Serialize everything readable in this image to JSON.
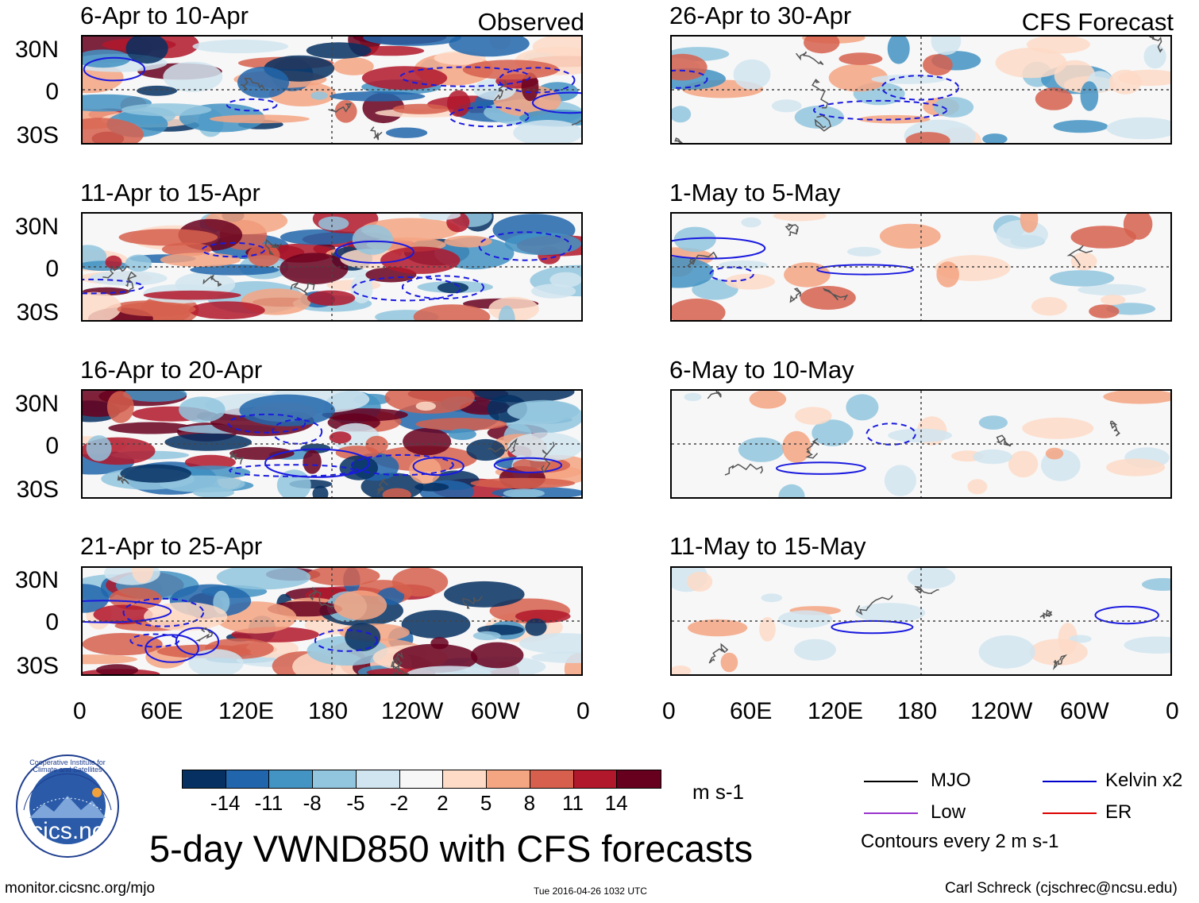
{
  "observed_label": "Observed",
  "forecast_label": "CFS Forecast",
  "panels": [
    {
      "title": "6-Apr to 10-Apr"
    },
    {
      "title": "11-Apr to 15-Apr"
    },
    {
      "title": "16-Apr to 20-Apr"
    },
    {
      "title": "21-Apr to 25-Apr"
    },
    {
      "title": "26-Apr to 30-Apr"
    },
    {
      "title": "1-May to 5-May"
    },
    {
      "title": "6-May to 10-May"
    },
    {
      "title": "11-May to 15-May"
    }
  ],
  "lat_ticks": [
    "30N",
    "0",
    "30S"
  ],
  "lon_ticks": [
    "0",
    "60E",
    "120E",
    "180",
    "120W",
    "60W",
    "0"
  ],
  "colorbar": {
    "colors": [
      "#053061",
      "#2166ac",
      "#4393c3",
      "#92c5de",
      "#d1e5f0",
      "#f7f7f7",
      "#fddbc7",
      "#f4a582",
      "#d6604d",
      "#b2182b",
      "#67001f"
    ],
    "labels": [
      "-14",
      "-11",
      "-8",
      "-5",
      "-2",
      "2",
      "5",
      "8",
      "11",
      "14"
    ],
    "units": "m s-1"
  },
  "legend": {
    "items": [
      {
        "label": "MJO",
        "color": "#000000"
      },
      {
        "label": "Kelvin x2",
        "color": "#0000cc"
      },
      {
        "label": "Low",
        "color": "#9933cc"
      },
      {
        "label": "ER",
        "color": "#dd0000"
      }
    ],
    "note": "Contours every 2 m s-1"
  },
  "logo_text": "Cooperative Institute for Climate and Satellites",
  "logo_name": "cics.nc",
  "main_title": "5-day VWND850 with CFS forecasts",
  "footer": {
    "url": "monitor.cicsnc.org/mjo",
    "timestamp": "Tue 2016-04-26 1032 UTC",
    "author": "Carl Schreck (cjschrec@ncsu.edu)"
  }
}
